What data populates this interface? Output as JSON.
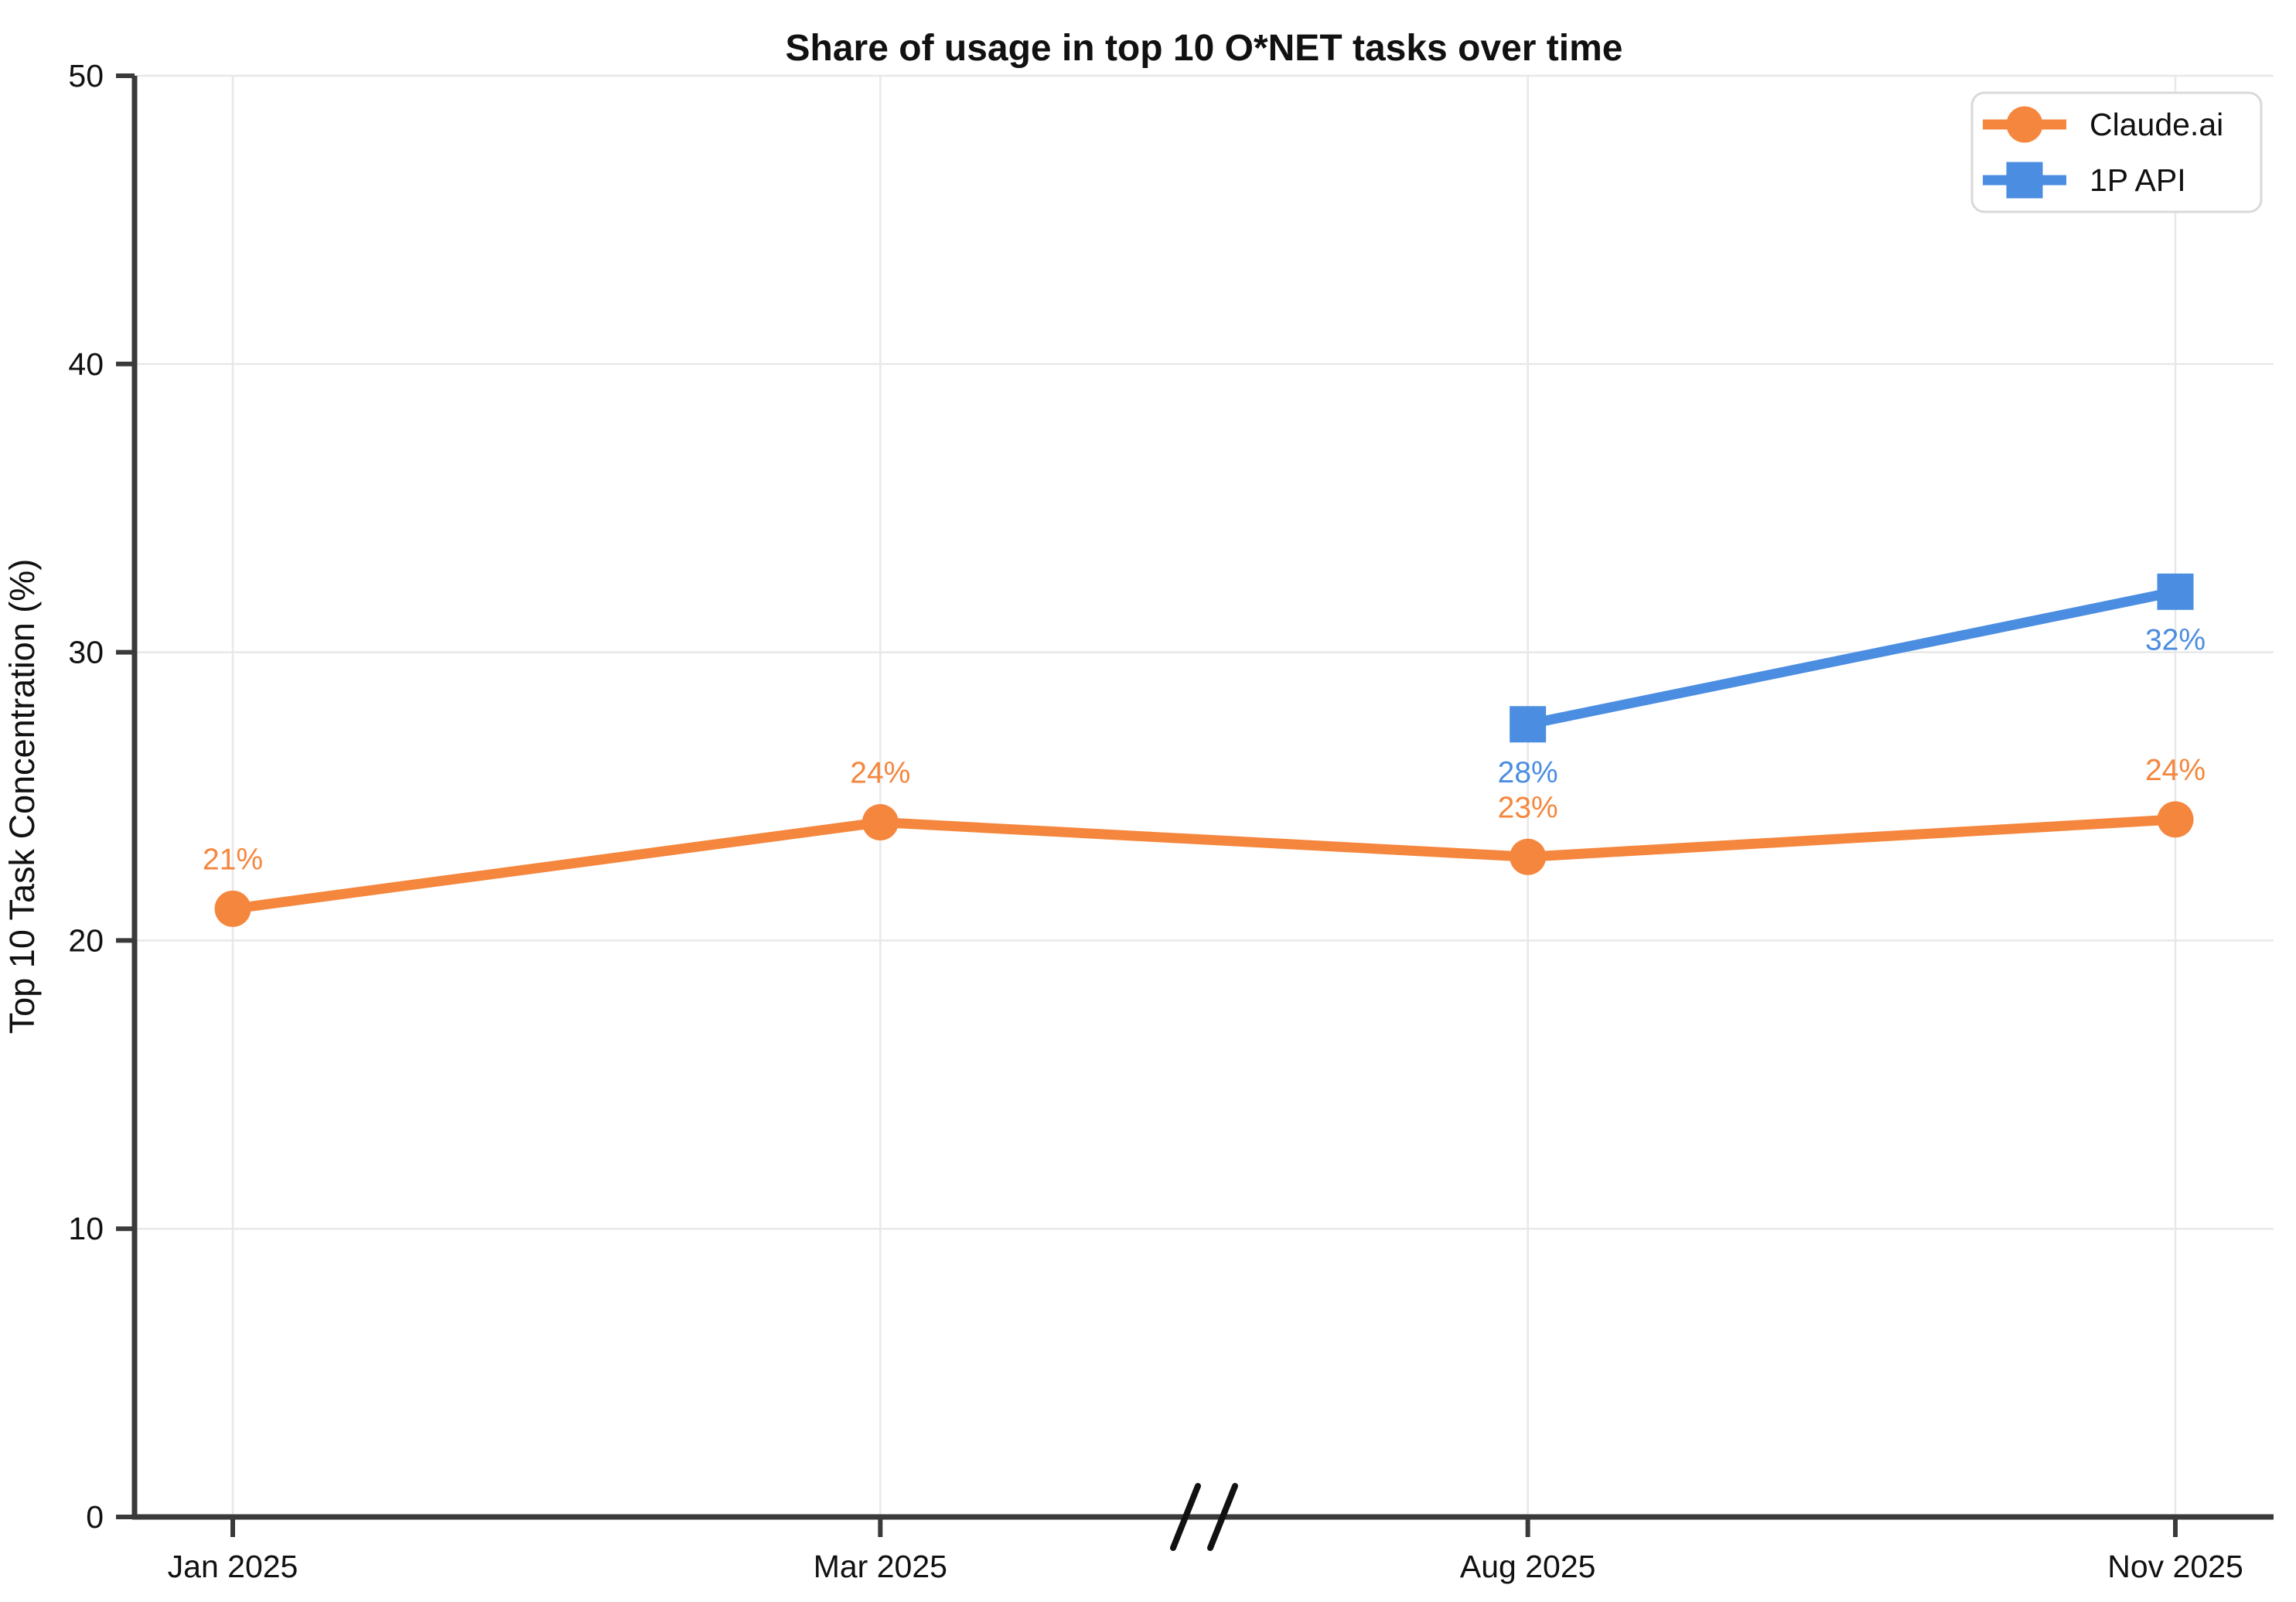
{
  "chart_data": {
    "type": "line",
    "title": "Share of usage in top 10 O*NET tasks over time",
    "xlabel": "",
    "ylabel": "Top 10 Task Concentration (%)",
    "categories": [
      "Jan 2025",
      "Mar 2025",
      "Aug 2025",
      "Nov 2025"
    ],
    "ylim": [
      0,
      50
    ],
    "yticks": [
      0,
      10,
      20,
      30,
      40,
      50
    ],
    "grid": true,
    "legend_position": "top-right",
    "axis_break_between": [
      "Mar 2025",
      "Aug 2025"
    ],
    "series": [
      {
        "name": "Claude.ai",
        "marker": "circle",
        "color": "#F5863D",
        "x": [
          "Jan 2025",
          "Mar 2025",
          "Aug 2025",
          "Nov 2025"
        ],
        "values": [
          21.1,
          24.1,
          22.9,
          24.2
        ],
        "labels": [
          "21%",
          "24%",
          "23%",
          "24%"
        ],
        "label_side": "above"
      },
      {
        "name": "1P API",
        "marker": "square",
        "color": "#4B8DE1",
        "x": [
          "Aug 2025",
          "Nov 2025"
        ],
        "values": [
          27.5,
          32.1
        ],
        "labels": [
          "28%",
          "32%"
        ],
        "label_side": "below"
      }
    ]
  },
  "colors": {
    "background": "#FFFFFF",
    "axis": "#3A3A3A",
    "grid": "#E8E8E8",
    "text": "#111111",
    "legend_border": "#D9D9D9",
    "axis_break": "#111111"
  }
}
